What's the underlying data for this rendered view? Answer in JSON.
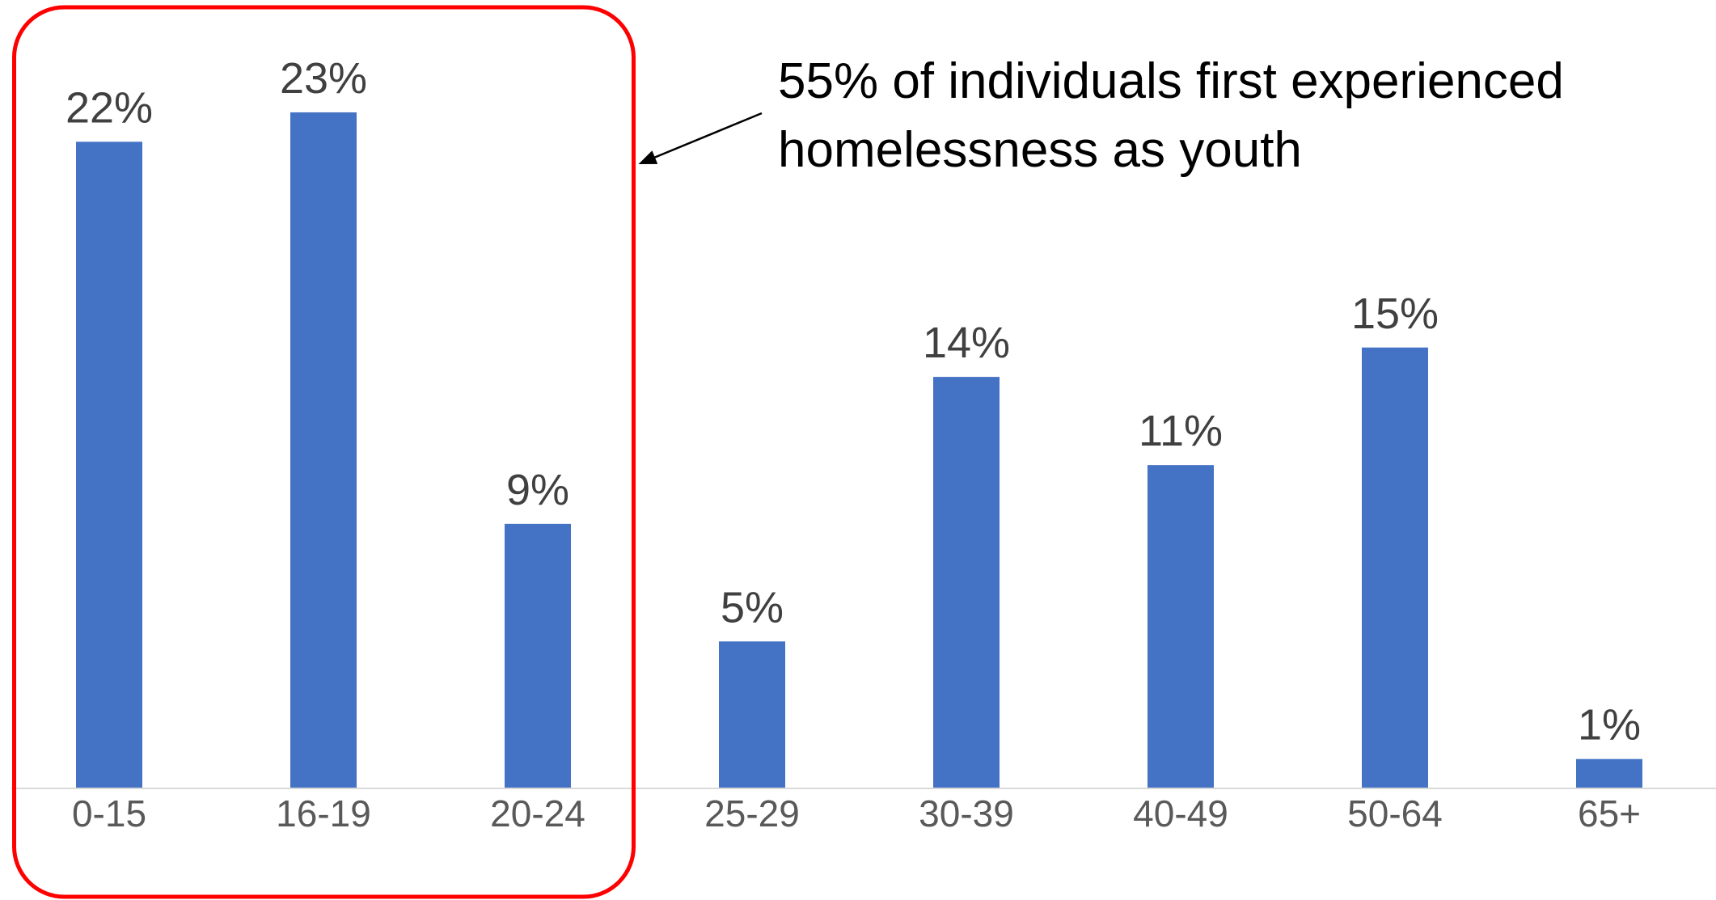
{
  "chart_data": {
    "type": "bar",
    "categories": [
      "0-15",
      "16-19",
      "20-24",
      "25-29",
      "30-39",
      "40-49",
      "50-64",
      "65+"
    ],
    "values": [
      22,
      23,
      9,
      5,
      14,
      11,
      15,
      1
    ],
    "data_labels": [
      "22%",
      "23%",
      "9%",
      "5%",
      "14%",
      "11%",
      "15%",
      "1%"
    ],
    "title": "",
    "xlabel": "",
    "ylabel": "",
    "ylim": [
      0,
      23
    ],
    "grid": false,
    "legend": "none",
    "bar_color": "#4472C4",
    "baseline_color": "#D9D9D9",
    "highlight": {
      "categories": [
        "0-15",
        "16-19",
        "20-24"
      ],
      "border_color": "#FF0000"
    },
    "annotation": {
      "line1": "55% of individuals first experienced",
      "line2": "homelessness as youth",
      "arrow_color": "#000000"
    }
  }
}
